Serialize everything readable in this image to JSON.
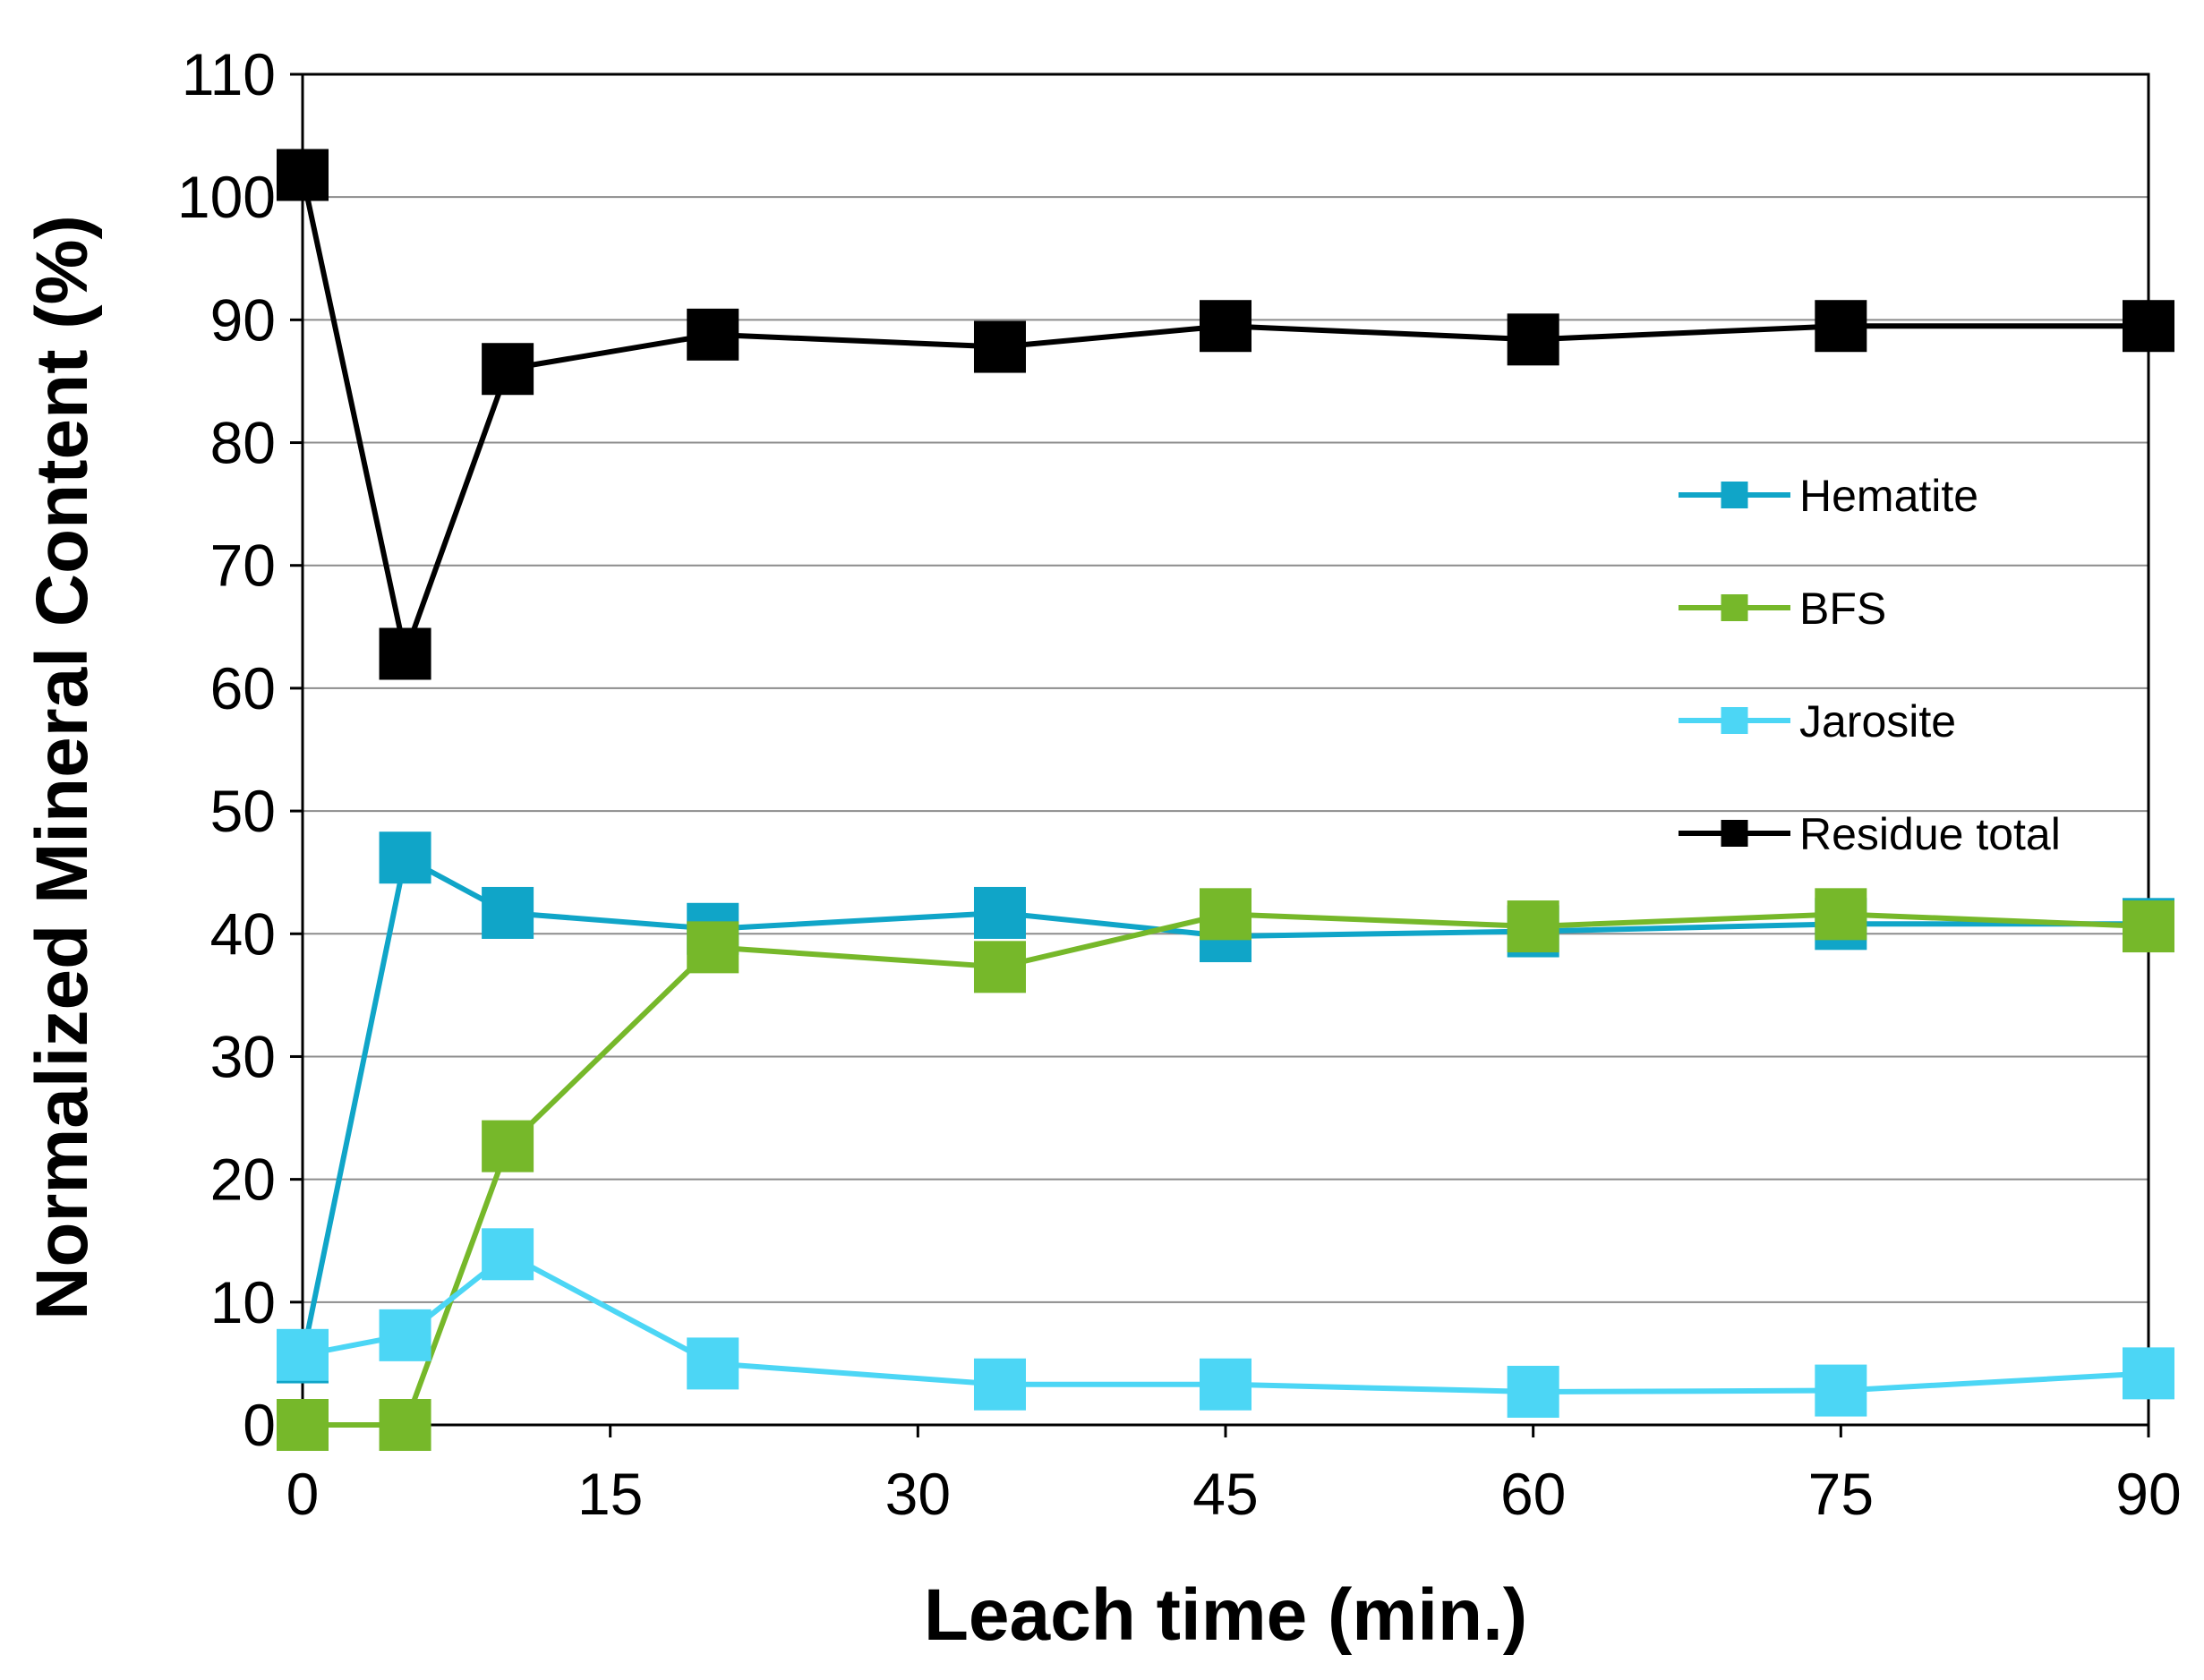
{
  "chart_data": {
    "type": "line",
    "title": "",
    "xlabel": "Leach time (min.)",
    "ylabel": "Normalized Mineral Content (%)",
    "xlim": [
      0,
      90
    ],
    "ylim": [
      0,
      110
    ],
    "xticks": [
      0,
      15,
      30,
      45,
      60,
      75,
      90
    ],
    "yticks": [
      0,
      10,
      20,
      30,
      40,
      50,
      60,
      70,
      80,
      90,
      100,
      110
    ],
    "grid": "horizontal",
    "legend_position": "right",
    "series": [
      {
        "name": "Hematite",
        "color": "#10a5c8",
        "x": [
          0,
          5,
          10,
          20,
          34,
          45,
          60,
          75,
          90
        ],
        "y": [
          5.5,
          46.2,
          41.7,
          40.4,
          41.7,
          39.8,
          40.2,
          40.8,
          40.8
        ]
      },
      {
        "name": "BFS",
        "color": "#76b82a",
        "x": [
          0,
          5,
          10,
          20,
          34,
          45,
          60,
          75,
          90
        ],
        "y": [
          0,
          0,
          22.7,
          38.9,
          37.3,
          41.6,
          40.6,
          41.6,
          40.6
        ]
      },
      {
        "name": "Jarosite",
        "color": "#4cd6f5",
        "x": [
          0,
          5,
          10,
          20,
          34,
          45,
          60,
          75,
          90
        ],
        "y": [
          5.7,
          7.3,
          13.9,
          5.0,
          3.3,
          3.3,
          2.7,
          2.8,
          4.2
        ]
      },
      {
        "name": "Residue total",
        "color": "#000000",
        "x": [
          0,
          5,
          10,
          20,
          34,
          45,
          60,
          75,
          90
        ],
        "y": [
          101.8,
          62.8,
          86.0,
          88.8,
          87.8,
          89.5,
          88.4,
          89.5,
          89.5
        ]
      }
    ]
  }
}
